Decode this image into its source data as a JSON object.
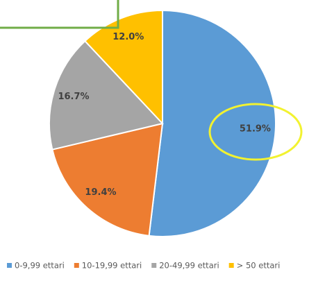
{
  "chart_data": {
    "type": "pie",
    "categories": [
      "0-9,99 ettari",
      "10-19,99 ettari",
      "20-49,99 ettari",
      "> 50 ettari"
    ],
    "values": [
      51.9,
      19.4,
      16.7,
      12.0
    ],
    "value_labels": [
      "51.9%",
      "19.4%",
      "16.7%",
      "12.0%"
    ],
    "colors": [
      "#5b9bd5",
      "#ed7d31",
      "#a5a5a5",
      "#ffc000"
    ],
    "legend": "bottom"
  }
}
